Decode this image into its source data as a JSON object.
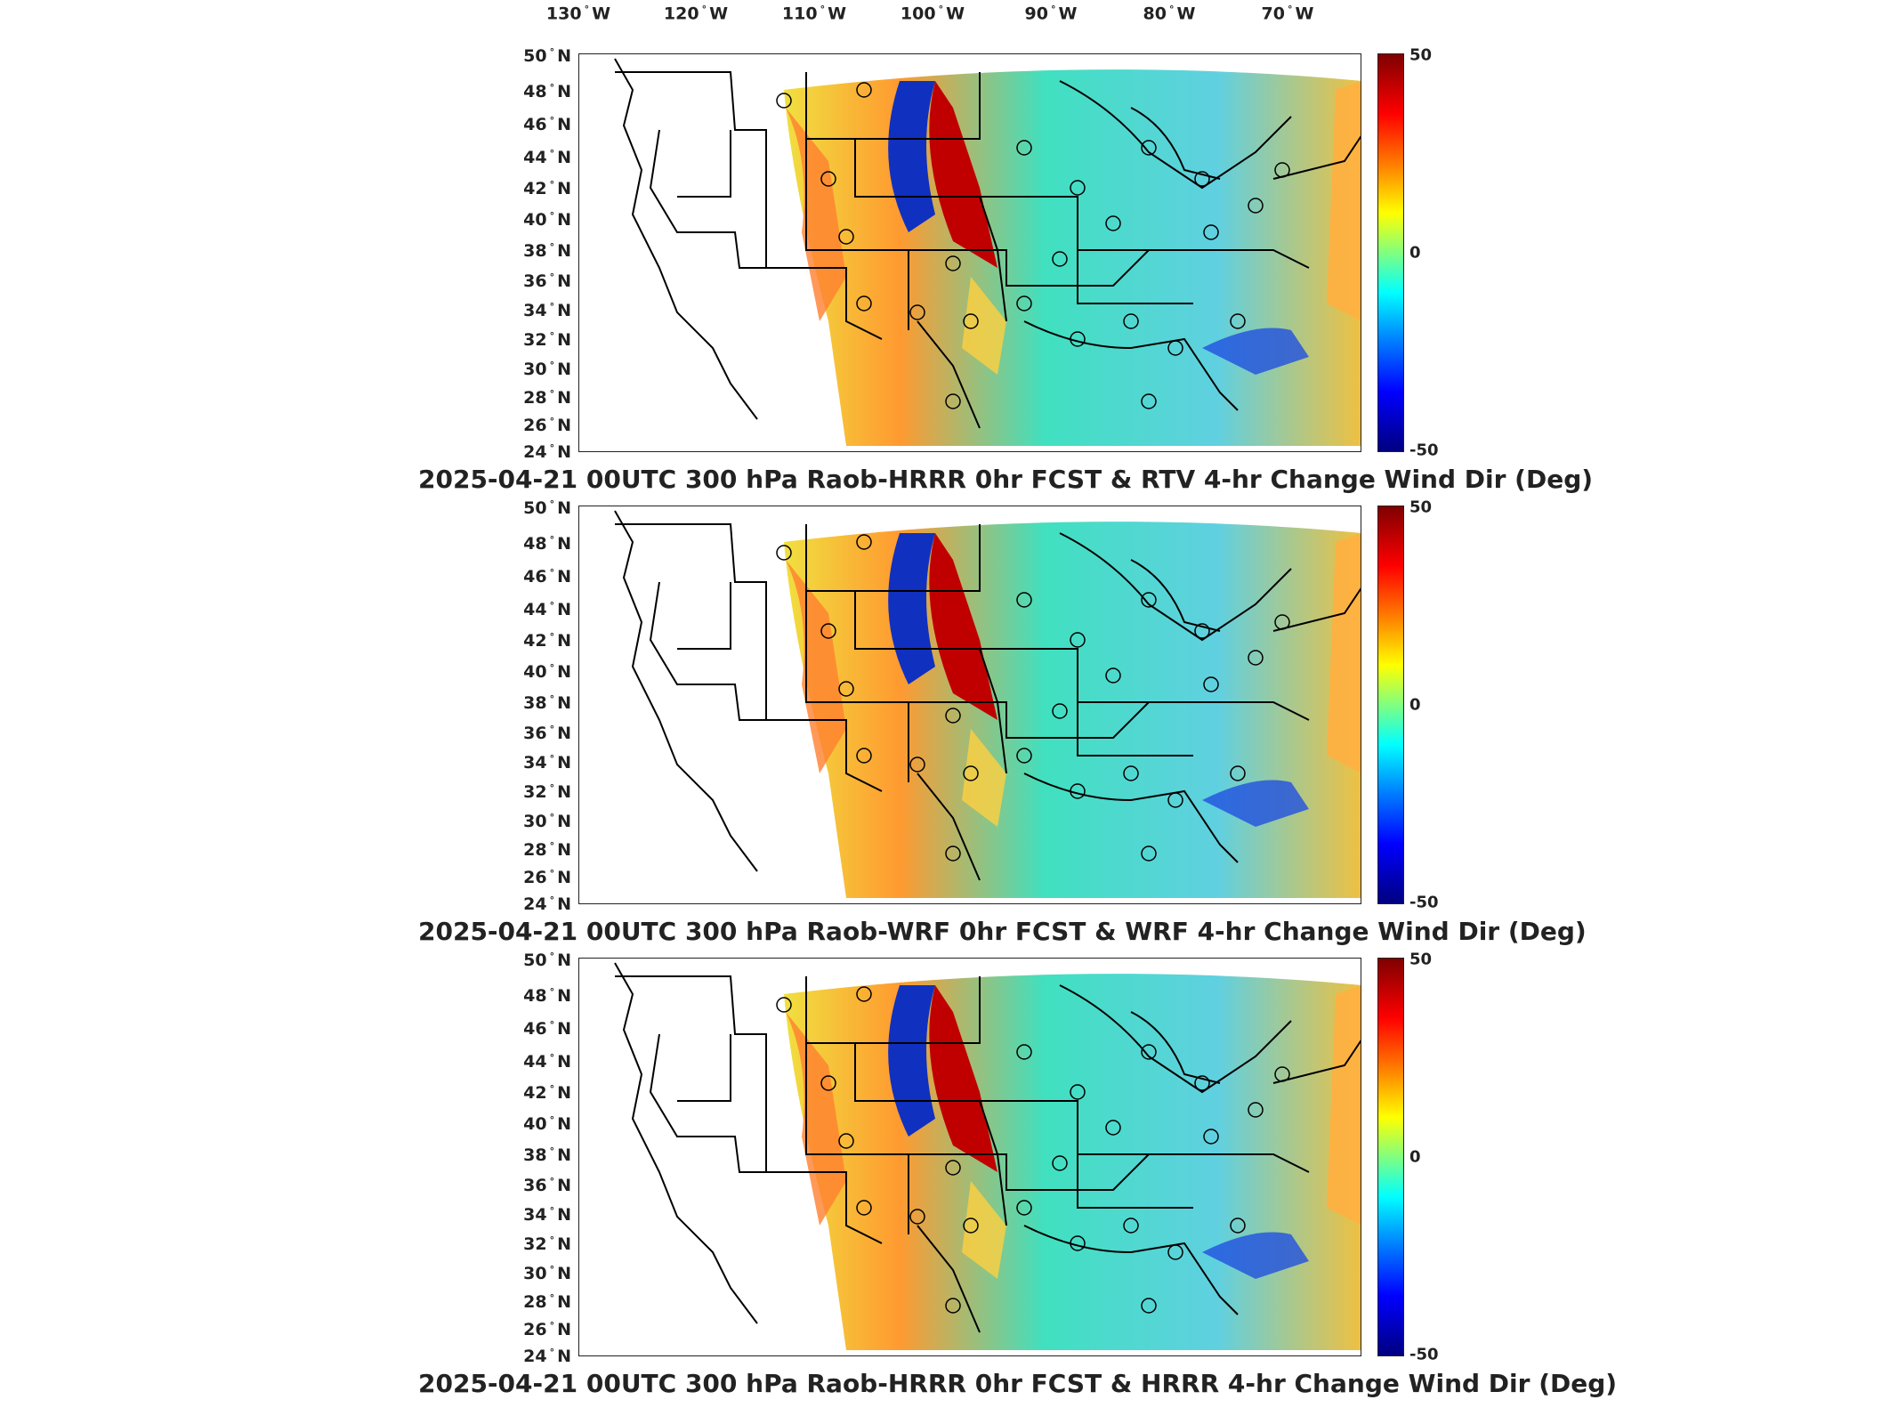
{
  "longitude_labels": [
    {
      "deg": "130",
      "hemi": "W"
    },
    {
      "deg": "120",
      "hemi": "W"
    },
    {
      "deg": "110",
      "hemi": "W"
    },
    {
      "deg": "100",
      "hemi": "W"
    },
    {
      "deg": "90",
      "hemi": "W"
    },
    {
      "deg": "80",
      "hemi": "W"
    },
    {
      "deg": "70",
      "hemi": "W"
    }
  ],
  "latitude_labels": [
    {
      "deg": "50",
      "hemi": "N"
    },
    {
      "deg": "48",
      "hemi": "N"
    },
    {
      "deg": "46",
      "hemi": "N"
    },
    {
      "deg": "44",
      "hemi": "N"
    },
    {
      "deg": "42",
      "hemi": "N"
    },
    {
      "deg": "40",
      "hemi": "N"
    },
    {
      "deg": "38",
      "hemi": "N"
    },
    {
      "deg": "36",
      "hemi": "N"
    },
    {
      "deg": "34",
      "hemi": "N"
    },
    {
      "deg": "32",
      "hemi": "N"
    },
    {
      "deg": "30",
      "hemi": "N"
    },
    {
      "deg": "28",
      "hemi": "N"
    },
    {
      "deg": "26",
      "hemi": "N"
    },
    {
      "deg": "24",
      "hemi": "N"
    }
  ],
  "colorbar": {
    "max": "50",
    "mid": "0",
    "min": "-50",
    "colormap": "jet"
  },
  "panels": [
    {
      "title": "2025-04-21 00UTC 300 hPa Raob-HRRR 0hr FCST & RTV 4-hr Change Wind Dir (Deg)"
    },
    {
      "title": "2025-04-21 00UTC 300 hPa Raob-WRF 0hr FCST & WRF 4-hr Change Wind Dir (Deg)"
    },
    {
      "title": "2025-04-21 00UTC 300 hPa Raob-HRRR 0hr FCST & HRRR 4-hr Change Wind Dir (Deg)"
    }
  ]
}
